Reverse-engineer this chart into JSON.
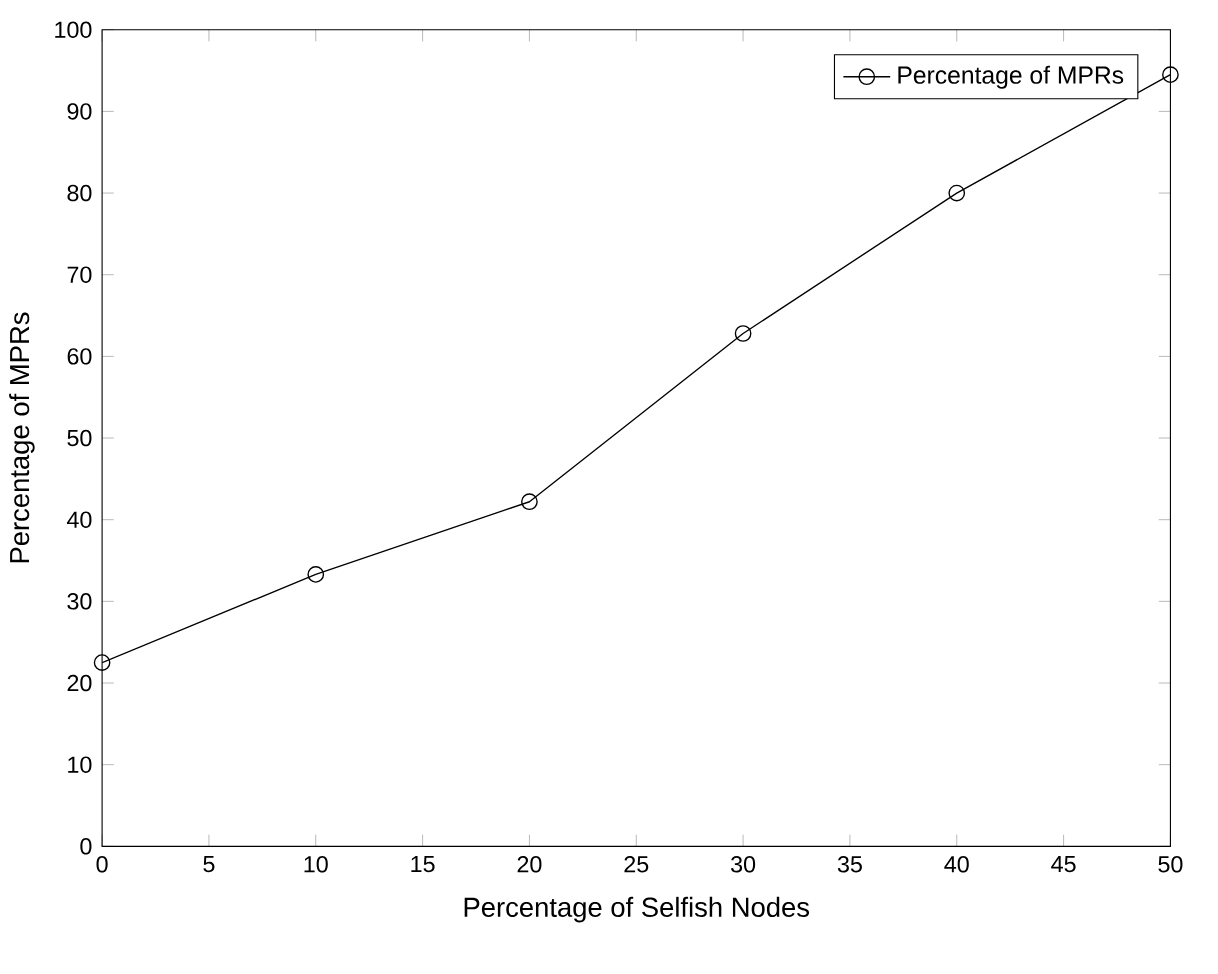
{
  "chart_data": {
    "type": "line",
    "xlabel": "Percentage of Selfish Nodes",
    "ylabel": "Percentage of MPRs",
    "x": [
      0,
      10,
      20,
      30,
      40,
      50
    ],
    "series": [
      {
        "name": "Percentage of MPRs",
        "color": "#000000",
        "values": [
          22.5,
          33.3,
          42.2,
          62.8,
          80,
          94.5
        ]
      }
    ],
    "xlim": [
      0,
      50
    ],
    "ylim": [
      0,
      100
    ],
    "xticks": [
      0,
      5,
      10,
      15,
      20,
      25,
      30,
      35,
      40,
      45,
      50
    ],
    "yticks": [
      0,
      10,
      20,
      30,
      40,
      50,
      60,
      70,
      80,
      90,
      100
    ],
    "marker": "circle",
    "line_style": "solid",
    "legend": "top right",
    "grid": false
  }
}
